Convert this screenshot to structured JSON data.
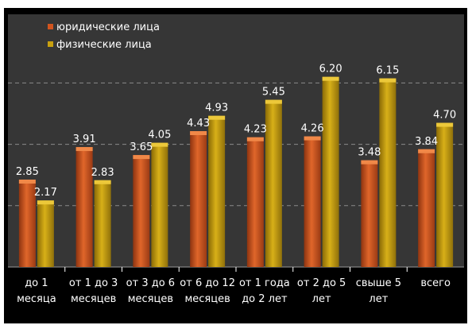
{
  "chart_data": {
    "type": "bar",
    "title": "",
    "xlabel": "",
    "ylabel": "",
    "ylim": [
      0,
      7
    ],
    "grid": true,
    "legend_position": "top-left",
    "categories": [
      [
        "до 1",
        "месяца"
      ],
      [
        "от 1 до 3",
        "месяцев"
      ],
      [
        "от 3 до 6",
        "месяцев"
      ],
      [
        "от 6 до 12",
        "месяцев"
      ],
      [
        "от 1 года",
        "до 2 лет"
      ],
      [
        "от 2 до 5",
        "лет"
      ],
      [
        "свыше 5",
        "лет"
      ],
      [
        "всего"
      ]
    ],
    "series": [
      {
        "name": "юридические лица",
        "color": "#D2541E",
        "values": [
          2.85,
          3.91,
          3.65,
          4.43,
          4.23,
          4.26,
          3.48,
          3.84
        ]
      },
      {
        "name": "физические лица",
        "color": "#C8A010",
        "values": [
          2.17,
          2.83,
          4.05,
          4.93,
          5.45,
          6.2,
          6.15,
          4.7
        ]
      }
    ]
  },
  "colors": {
    "plot_background": "#363636",
    "axis_area_background": "#000000",
    "grid": "#8a8a8a",
    "text": "#ffffff"
  }
}
